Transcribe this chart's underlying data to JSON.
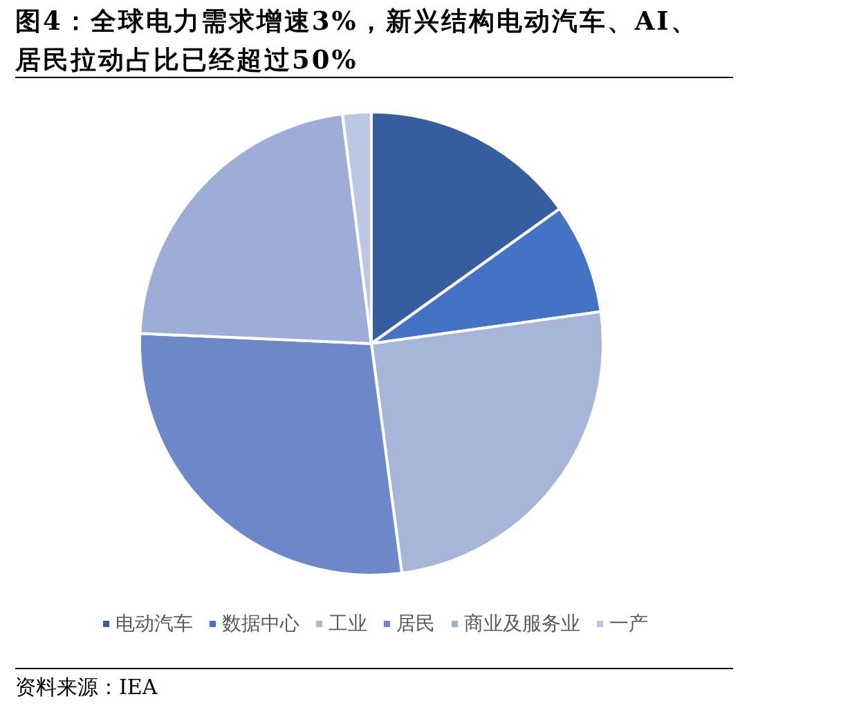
{
  "chart_data": {
    "type": "pie",
    "title": "图4：全球电力需求增速3%，新兴结构电动汽车、AI、居民拉动占比已经超过50%",
    "categories": [
      "电动汽车",
      "数据中心",
      "工业",
      "居民",
      "商业及服务业",
      "一产"
    ],
    "values": [
      15.1,
      7.7,
      25.1,
      27.8,
      22.3,
      2.0
    ],
    "colors": [
      "#365da0",
      "#4472c4",
      "#a7b5d9",
      "#6d88c9",
      "#9eadd8",
      "#bcc7e5"
    ],
    "legend": "bottom",
    "annotations": [
      "资料来源：IEA"
    ]
  }
}
